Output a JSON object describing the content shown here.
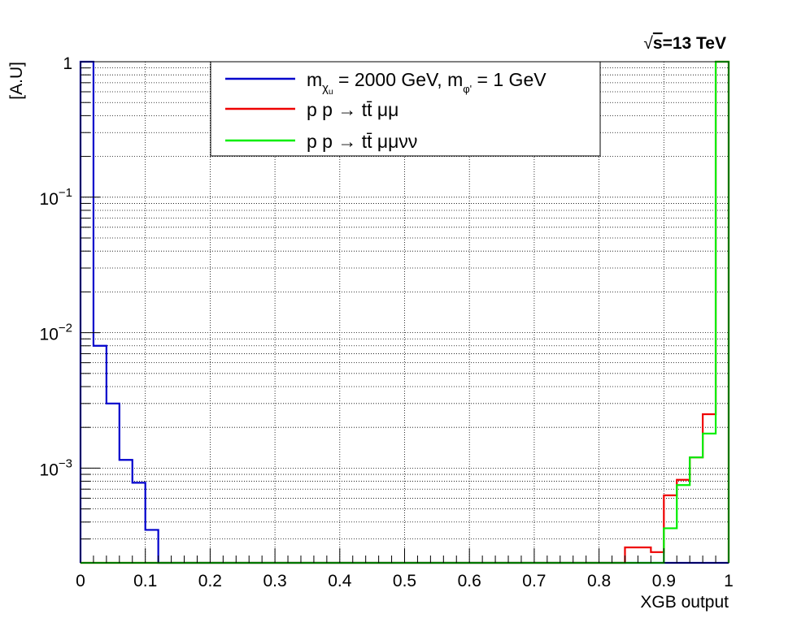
{
  "chart_data": {
    "type": "line",
    "style": "step-histogram",
    "energy_label": {
      "sqrt": "√",
      "s": "s",
      "rest": "=13 TeV"
    },
    "xlabel": "XGB output",
    "ylabel": "[A.U]",
    "xlim": [
      0,
      1
    ],
    "ylim": [
      0.0002,
      1
    ],
    "yscale": "log",
    "grid": true,
    "legend_position": "top-center",
    "x_ticks": [
      "0",
      "0.1",
      "0.2",
      "0.3",
      "0.4",
      "0.5",
      "0.6",
      "0.7",
      "0.8",
      "0.9",
      "1"
    ],
    "y_ticks": [
      {
        "value": 1,
        "base": "1",
        "exp": ""
      },
      {
        "value": 0.1,
        "base": "10",
        "exp": "−1"
      },
      {
        "value": 0.01,
        "base": "10",
        "exp": "−2"
      },
      {
        "value": 0.001,
        "base": "10",
        "exp": "−3"
      }
    ],
    "bin_edges": [
      0,
      0.02,
      0.04,
      0.06,
      0.08,
      0.1,
      0.12,
      0.14,
      0.16,
      0.18,
      0.2,
      0.22,
      0.24,
      0.26,
      0.28,
      0.3,
      0.32,
      0.34,
      0.36,
      0.38,
      0.4,
      0.42,
      0.44,
      0.46,
      0.48,
      0.5,
      0.52,
      0.54,
      0.56,
      0.58,
      0.6,
      0.62,
      0.64,
      0.66,
      0.68,
      0.7,
      0.72,
      0.74,
      0.76,
      0.78,
      0.8,
      0.82,
      0.84,
      0.86,
      0.88,
      0.9,
      0.92,
      0.94,
      0.96,
      0.98,
      1.0
    ],
    "series": [
      {
        "legend": {
          "base": "m",
          "sub1": "χ",
          "sub2": "u",
          "mid": " = 2000 GeV, m",
          "sub3": "φ'",
          "end": " = 1 GeV"
        },
        "color": "#0000cc",
        "bins": [
          {
            "x0": 0.0,
            "x1": 0.02,
            "y": 1.0
          },
          {
            "x0": 0.02,
            "x1": 0.04,
            "y": 0.008
          },
          {
            "x0": 0.04,
            "x1": 0.06,
            "y": 0.003
          },
          {
            "x0": 0.06,
            "x1": 0.08,
            "y": 0.00115
          },
          {
            "x0": 0.08,
            "x1": 0.1,
            "y": 0.00078
          },
          {
            "x0": 0.1,
            "x1": 0.12,
            "y": 0.00035
          },
          {
            "x0": 0.12,
            "x1": 1.0,
            "y": 0
          }
        ]
      },
      {
        "legend": {
          "text": "p p → tt̄ μμ"
        },
        "color": "#ee0000",
        "bins": [
          {
            "x0": 0.0,
            "x1": 0.84,
            "y": 0
          },
          {
            "x0": 0.84,
            "x1": 0.88,
            "y": 0.00026
          },
          {
            "x0": 0.88,
            "x1": 0.9,
            "y": 0.00024
          },
          {
            "x0": 0.9,
            "x1": 0.92,
            "y": 0.00063
          },
          {
            "x0": 0.92,
            "x1": 0.94,
            "y": 0.00082
          },
          {
            "x0": 0.94,
            "x1": 0.96,
            "y": 0.0012
          },
          {
            "x0": 0.96,
            "x1": 0.98,
            "y": 0.0025
          },
          {
            "x0": 0.98,
            "x1": 1.0,
            "y": 1.0
          }
        ]
      },
      {
        "legend": {
          "text": "p p → tt̄ μμνν"
        },
        "color": "#00ee00",
        "bins": [
          {
            "x0": 0.0,
            "x1": 0.9,
            "y": 0
          },
          {
            "x0": 0.9,
            "x1": 0.92,
            "y": 0.00036
          },
          {
            "x0": 0.92,
            "x1": 0.94,
            "y": 0.00075
          },
          {
            "x0": 0.94,
            "x1": 0.96,
            "y": 0.0012
          },
          {
            "x0": 0.96,
            "x1": 0.98,
            "y": 0.0018
          },
          {
            "x0": 0.98,
            "x1": 1.0,
            "y": 1.0
          }
        ]
      }
    ]
  }
}
